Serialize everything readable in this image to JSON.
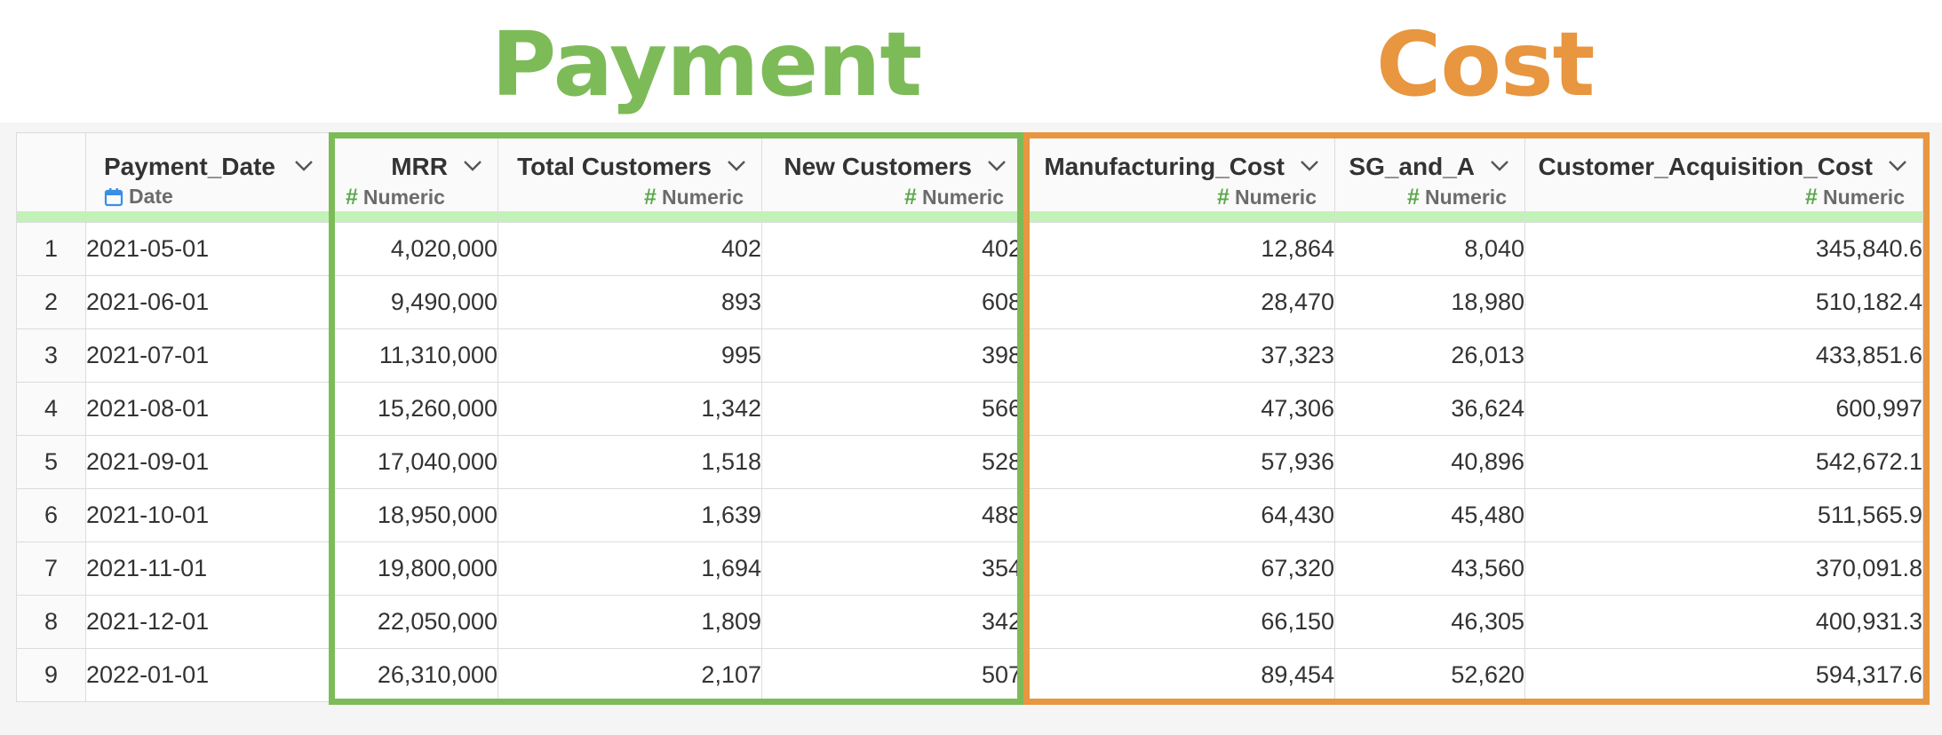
{
  "groups": {
    "payment_label": "Payment",
    "cost_label": "Cost",
    "payment_color": "#7dbb58",
    "cost_color": "#e8963f"
  },
  "columns": [
    {
      "name": "Payment_Date",
      "type": "Date",
      "icon": "calendar-icon"
    },
    {
      "name": "MRR",
      "type": "Numeric",
      "icon": "hash-icon"
    },
    {
      "name": "Total Customers",
      "type": "Numeric",
      "icon": "hash-icon"
    },
    {
      "name": "New Customers",
      "type": "Numeric",
      "icon": "hash-icon"
    },
    {
      "name": "Manufacturing_Cost",
      "type": "Numeric",
      "icon": "hash-icon"
    },
    {
      "name": "SG_and_A",
      "type": "Numeric",
      "icon": "hash-icon"
    },
    {
      "name": "Customer_Acquisition_Cost",
      "type": "Numeric",
      "icon": "hash-icon"
    }
  ],
  "rows": [
    {
      "n": "1",
      "c": [
        "2021-05-01",
        "4,020,000",
        "402",
        "402",
        "12,864",
        "8,040",
        "345,840.6"
      ]
    },
    {
      "n": "2",
      "c": [
        "2021-06-01",
        "9,490,000",
        "893",
        "608",
        "28,470",
        "18,980",
        "510,182.4"
      ]
    },
    {
      "n": "3",
      "c": [
        "2021-07-01",
        "11,310,000",
        "995",
        "398",
        "37,323",
        "26,013",
        "433,851.6"
      ]
    },
    {
      "n": "4",
      "c": [
        "2021-08-01",
        "15,260,000",
        "1,342",
        "566",
        "47,306",
        "36,624",
        "600,997"
      ]
    },
    {
      "n": "5",
      "c": [
        "2021-09-01",
        "17,040,000",
        "1,518",
        "528",
        "57,936",
        "40,896",
        "542,672.1"
      ]
    },
    {
      "n": "6",
      "c": [
        "2021-10-01",
        "18,950,000",
        "1,639",
        "488",
        "64,430",
        "45,480",
        "511,565.9"
      ]
    },
    {
      "n": "7",
      "c": [
        "2021-11-01",
        "19,800,000",
        "1,694",
        "354",
        "67,320",
        "43,560",
        "370,091.8"
      ]
    },
    {
      "n": "8",
      "c": [
        "2021-12-01",
        "22,050,000",
        "1,809",
        "342",
        "66,150",
        "46,305",
        "400,931.3"
      ]
    },
    {
      "n": "9",
      "c": [
        "2022-01-01",
        "26,310,000",
        "2,107",
        "507",
        "89,454",
        "52,620",
        "594,317.6"
      ]
    }
  ]
}
